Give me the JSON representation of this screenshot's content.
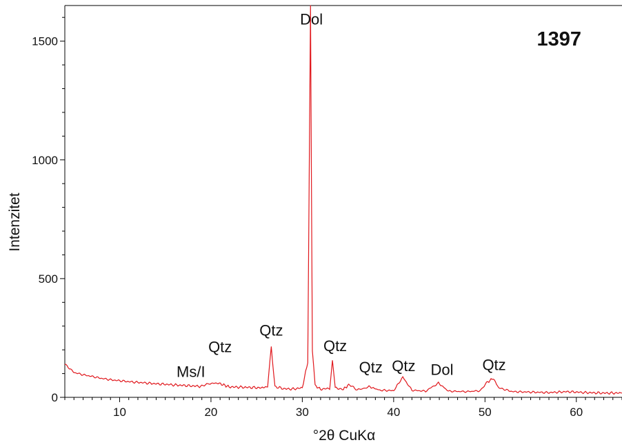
{
  "chart_data": {
    "type": "line",
    "title": "",
    "sample_id": "1397",
    "xlabel": "°2θ CuKα",
    "ylabel": "Intenzitet",
    "xlim": [
      4,
      65
    ],
    "ylim": [
      0,
      1650
    ],
    "x_ticks": [
      10,
      20,
      30,
      40,
      50,
      60
    ],
    "y_ticks": [
      0,
      500,
      1000,
      1500
    ],
    "line_color": "#e0161b",
    "grid": false,
    "legend": "none",
    "series": [
      {
        "x": [
          4,
          5,
          6,
          7,
          8,
          9,
          10,
          11,
          12,
          13,
          14,
          15,
          16,
          17,
          18,
          19,
          19.8,
          20.8,
          22,
          24,
          25.5,
          26.2,
          26.6,
          27.0,
          28,
          29,
          30,
          30.6,
          30.9,
          31.1,
          31.4,
          32,
          33,
          33.3,
          33.6,
          34.5,
          35.2,
          36,
          37.3,
          38.5,
          40,
          41.0,
          42,
          43.5,
          44.9,
          46,
          48,
          49.5,
          50.3,
          50.9,
          51.5,
          53,
          55,
          57,
          59,
          61,
          63,
          65
        ],
        "y": [
          140,
          105,
          95,
          88,
          80,
          74,
          70,
          66,
          63,
          60,
          57,
          55,
          52,
          50,
          48,
          46,
          58,
          60,
          44,
          42,
          40,
          45,
          210,
          45,
          36,
          35,
          40,
          150,
          1650,
          200,
          50,
          34,
          38,
          158,
          38,
          35,
          55,
          30,
          45,
          30,
          28,
          85,
          30,
          26,
          60,
          26,
          24,
          28,
          65,
          80,
          40,
          24,
          22,
          20,
          24,
          20,
          18,
          18
        ]
      }
    ],
    "annotations": [
      {
        "text": "Dol",
        "x": 31.0,
        "y": 1570
      },
      {
        "text": "Qtz",
        "x": 26.6,
        "y": 260
      },
      {
        "text": "Ms/I",
        "x": 17.8,
        "y": 85
      },
      {
        "text": "Qtz",
        "x": 21.0,
        "y": 190
      },
      {
        "text": "Qtz",
        "x": 33.6,
        "y": 195
      },
      {
        "text": "Qtz",
        "x": 37.5,
        "y": 105
      },
      {
        "text": "Qtz",
        "x": 41.1,
        "y": 110
      },
      {
        "text": "Dol",
        "x": 45.3,
        "y": 95
      },
      {
        "text": "Qtz",
        "x": 51.0,
        "y": 115
      }
    ]
  }
}
